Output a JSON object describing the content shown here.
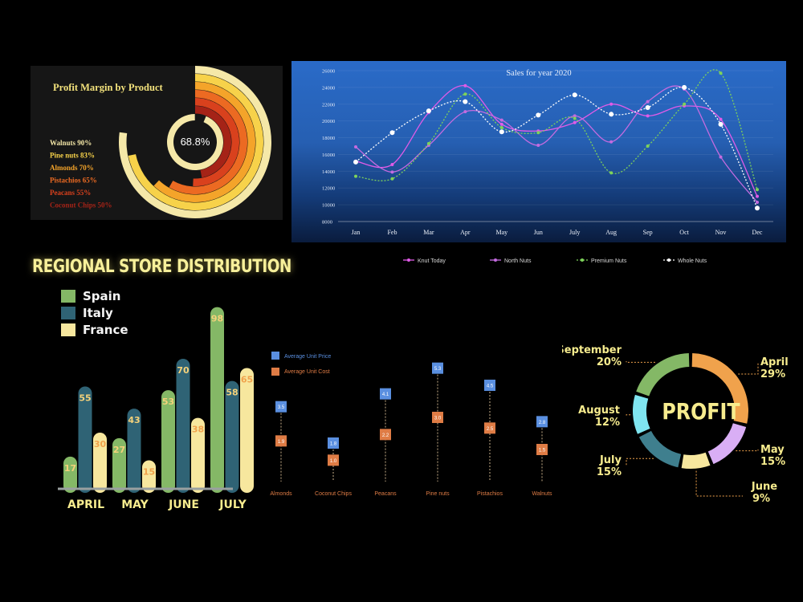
{
  "chart_data": [
    {
      "type": "radial-bar",
      "title": "Profit Margin by Product",
      "center_label": "68.8%",
      "categories": [
        "Walnuts",
        "Pine nuts",
        "Almonds",
        "Pistachios",
        "Peacans",
        "Coconut Chips"
      ],
      "legend_labels": [
        "Walnuts 90%",
        "Pine nuts  83%",
        "Almonds  70%",
        "Pistachios  65%",
        "Peacans 55%",
        "Coconut Chips 50%"
      ],
      "values": [
        90,
        83,
        70,
        65,
        55,
        50
      ],
      "unit": "%",
      "colors": [
        "#f5e8a8",
        "#f7d24a",
        "#f4a42a",
        "#ec6a22",
        "#d9411d",
        "#a52317"
      ]
    },
    {
      "type": "line",
      "title": "Sales for year 2020",
      "categories": [
        "Jan",
        "Feb",
        "Mar",
        "Apr",
        "May",
        "Jun",
        "July",
        "Aug",
        "Sep",
        "Oct",
        "Nov",
        "Dec"
      ],
      "ylim": [
        8000,
        26000
      ],
      "yticks": [
        "8000",
        "10000",
        "12000",
        "14000",
        "16000",
        "18000",
        "20000",
        "22000",
        "24000",
        "26000"
      ],
      "series": [
        {
          "name": "Knut Today",
          "color": "#e05be8",
          "dash": false,
          "values": [
            15200,
            14800,
            21000,
            24200,
            19600,
            18800,
            19800,
            22000,
            20600,
            21800,
            20200,
            11000
          ]
        },
        {
          "name": "North Nuts",
          "color": "#c46be0",
          "dash": false,
          "values": [
            16900,
            13900,
            17100,
            21100,
            20100,
            17100,
            20600,
            17500,
            22300,
            23800,
            15700,
            10300
          ]
        },
        {
          "name": "Premium Nuts",
          "color": "#7ed35a",
          "dash": true,
          "values": [
            13400,
            13100,
            17300,
            23200,
            19200,
            18600,
            20300,
            13800,
            17000,
            22000,
            25700,
            11800
          ]
        },
        {
          "name": "Whole Nuts",
          "color": "#ffffff",
          "dash": true,
          "values": [
            15100,
            18600,
            21200,
            22300,
            18700,
            20700,
            23100,
            20800,
            21600,
            24000,
            19600,
            9600
          ]
        }
      ]
    },
    {
      "type": "bar",
      "title": "REGIONAL STORE DISTRIBUTION",
      "categories": [
        "APRIL",
        "MAY",
        "JUNE",
        "JULY"
      ],
      "ylim": [
        0,
        100
      ],
      "series": [
        {
          "name": "Spain",
          "color": "#84b866",
          "values": [
            17,
            27,
            53,
            98
          ]
        },
        {
          "name": "Italy",
          "color": "#2f6375",
          "values": [
            55,
            43,
            70,
            58
          ]
        },
        {
          "name": "France",
          "color": "#f7e79e",
          "values": [
            30,
            15,
            38,
            65
          ]
        }
      ],
      "data_labels": [
        [
          "17",
          "55",
          "30"
        ],
        [
          "27",
          "43",
          "15"
        ],
        [
          "53",
          "70",
          "38"
        ],
        [
          "98",
          "58",
          "65"
        ]
      ]
    },
    {
      "type": "dot-plot",
      "categories": [
        "Almonds",
        "Coconut Chips",
        "Peacans",
        "Pine nuts",
        "Pistachios",
        "Walnuts"
      ],
      "ylim": [
        0,
        6
      ],
      "series": [
        {
          "name": "Average Unit Price",
          "color": "#5a8fe0",
          "values": [
            3.5,
            1.8,
            4.1,
            5.3,
            4.5,
            2.8
          ],
          "labels": [
            "3.5",
            "1.8",
            "4.1",
            "5.3",
            "4.5",
            "2.8"
          ]
        },
        {
          "name": "Average Unit Cost",
          "color": "#df7c45",
          "values": [
            1.9,
            1.0,
            2.2,
            3.0,
            2.5,
            1.5
          ],
          "labels": [
            "1.9",
            "1.0",
            "2.2",
            "3.0",
            "2.5",
            "1.5"
          ]
        }
      ]
    },
    {
      "type": "pie",
      "title": "PROFIT",
      "categories": [
        "April",
        "May",
        "June",
        "July",
        "August",
        "September"
      ],
      "values": [
        29,
        15,
        9,
        15,
        12,
        20
      ],
      "percent_labels": [
        "29%",
        "15%",
        "9%",
        "15%",
        "12%",
        "20%"
      ],
      "colors": [
        "#f0a24c",
        "#d9aef5",
        "#f7e79e",
        "#3f7f8e",
        "#7fe5f0",
        "#84b866"
      ]
    }
  ]
}
